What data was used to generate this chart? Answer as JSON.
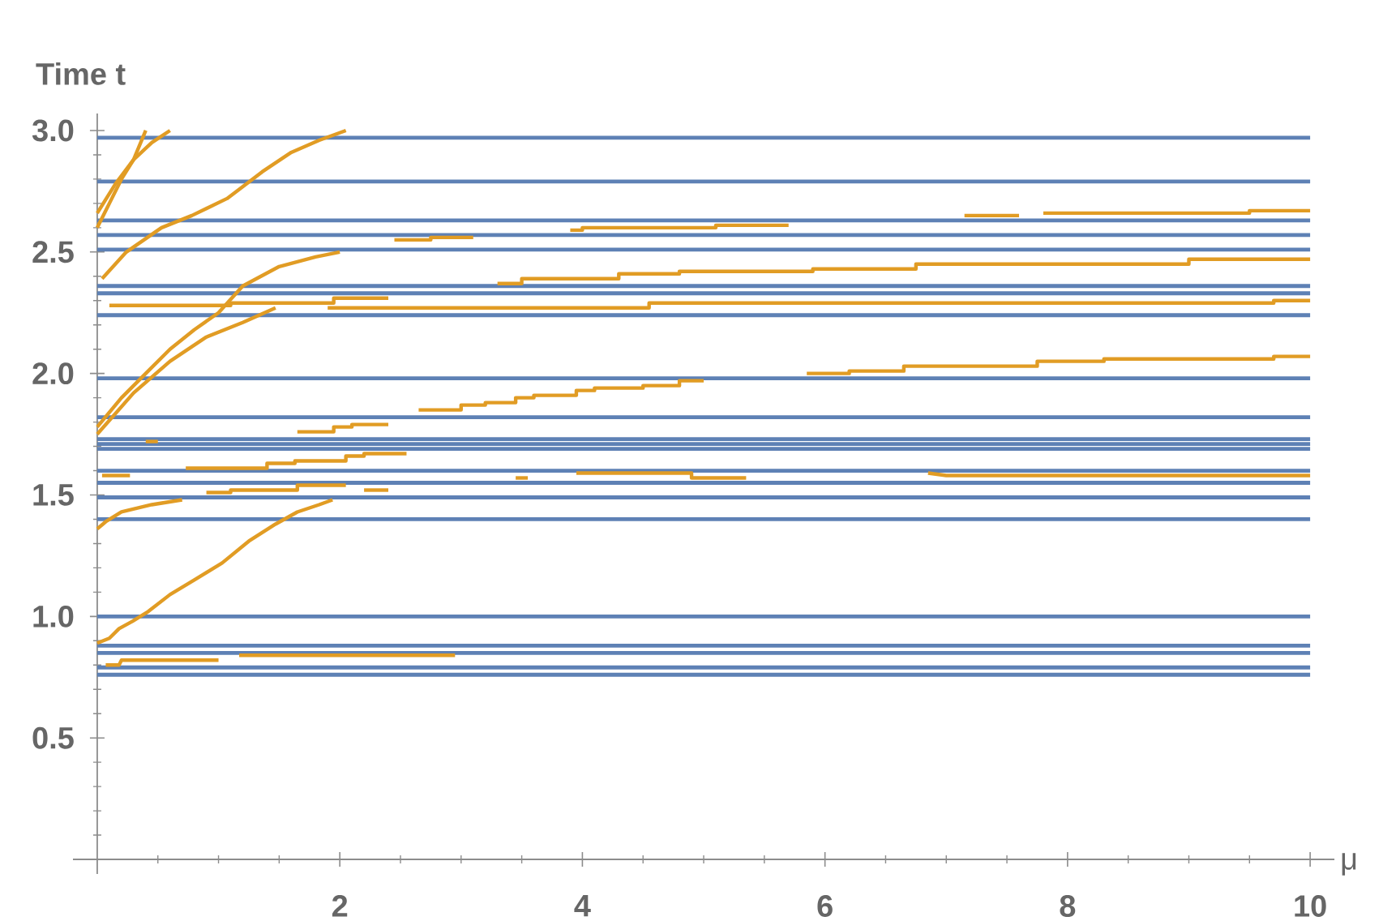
{
  "chart_data": {
    "type": "line",
    "xlabel": "μ",
    "ylabel": "Time t",
    "xlim": [
      -0.2,
      10.2
    ],
    "ylim": [
      -0.06,
      3.07
    ],
    "xticks": [
      {
        "value": 0.5,
        "label": null
      },
      {
        "value": 1,
        "label": null
      },
      {
        "value": 1.5,
        "label": null
      },
      2,
      {
        "value": 2.5,
        "label": null
      },
      {
        "value": 3,
        "label": null
      },
      {
        "value": 3.5,
        "label": null
      },
      4,
      {
        "value": 4.5,
        "label": null
      },
      {
        "value": 5,
        "label": null
      },
      {
        "value": 5.5,
        "label": null
      },
      6,
      {
        "value": 6.5,
        "label": null
      },
      {
        "value": 7,
        "label": null
      },
      {
        "value": 7.5,
        "label": null
      },
      8,
      {
        "value": 8.5,
        "label": null
      },
      {
        "value": 9,
        "label": null
      },
      {
        "value": 9.5,
        "label": null
      },
      10
    ],
    "yticks": [
      {
        "value": 0.1,
        "label": null
      },
      {
        "value": 0.2,
        "label": null
      },
      {
        "value": 0.3,
        "label": null
      },
      {
        "value": 0.4,
        "label": null
      },
      0.5,
      {
        "value": 0.6,
        "label": null
      },
      {
        "value": 0.7,
        "label": null
      },
      {
        "value": 0.8,
        "label": null
      },
      {
        "value": 0.9,
        "label": null
      },
      {
        "value": 1,
        "label": "1.0"
      },
      {
        "value": 1.1,
        "label": null
      },
      {
        "value": 1.2,
        "label": null
      },
      {
        "value": 1.3,
        "label": null
      },
      {
        "value": 1.4,
        "label": null
      },
      1.5,
      {
        "value": 1.6,
        "label": null
      },
      {
        "value": 1.7,
        "label": null
      },
      {
        "value": 1.8,
        "label": null
      },
      {
        "value": 1.9,
        "label": null
      },
      {
        "value": 2,
        "label": "2.0"
      },
      {
        "value": 2.1,
        "label": null
      },
      {
        "value": 2.2,
        "label": null
      },
      {
        "value": 2.3,
        "label": null
      },
      {
        "value": 2.4,
        "label": null
      },
      2.5,
      {
        "value": 2.6,
        "label": null
      },
      {
        "value": 2.7,
        "label": null
      },
      {
        "value": 2.8,
        "label": null
      },
      {
        "value": 2.9,
        "label": null
      },
      {
        "value": 3,
        "label": "3.0"
      }
    ],
    "series": [
      {
        "color": "#5e81b5",
        "x": [
          0,
          10
        ],
        "values": [
          2.97,
          2.97
        ]
      },
      {
        "color": "#5e81b5",
        "x": [
          0,
          10
        ],
        "values": [
          2.79,
          2.79
        ]
      },
      {
        "color": "#5e81b5",
        "x": [
          0,
          10
        ],
        "values": [
          2.63,
          2.63
        ]
      },
      {
        "color": "#5e81b5",
        "x": [
          0,
          10
        ],
        "values": [
          2.57,
          2.57
        ]
      },
      {
        "color": "#5e81b5",
        "x": [
          0,
          10
        ],
        "values": [
          2.51,
          2.51
        ]
      },
      {
        "color": "#5e81b5",
        "x": [
          0,
          10
        ],
        "values": [
          2.36,
          2.36
        ]
      },
      {
        "color": "#5e81b5",
        "x": [
          0,
          10
        ],
        "values": [
          2.33,
          2.33
        ]
      },
      {
        "color": "#5e81b5",
        "x": [
          0,
          10
        ],
        "values": [
          2.24,
          2.24
        ]
      },
      {
        "color": "#5e81b5",
        "x": [
          0,
          10
        ],
        "values": [
          1.98,
          1.98
        ]
      },
      {
        "color": "#5e81b5",
        "x": [
          0,
          10
        ],
        "values": [
          1.82,
          1.82
        ]
      },
      {
        "color": "#5e81b5",
        "x": [
          0,
          10
        ],
        "values": [
          1.73,
          1.73
        ]
      },
      {
        "color": "#5e81b5",
        "x": [
          0,
          10
        ],
        "values": [
          1.71,
          1.71
        ]
      },
      {
        "color": "#5e81b5",
        "x": [
          0,
          10
        ],
        "values": [
          1.69,
          1.69
        ]
      },
      {
        "color": "#5e81b5",
        "x": [
          0,
          10
        ],
        "values": [
          1.6,
          1.6
        ]
      },
      {
        "color": "#5e81b5",
        "x": [
          0,
          10
        ],
        "values": [
          1.55,
          1.55
        ]
      },
      {
        "color": "#5e81b5",
        "x": [
          0,
          10
        ],
        "values": [
          1.49,
          1.49
        ]
      },
      {
        "color": "#5e81b5",
        "x": [
          0,
          10
        ],
        "values": [
          1.4,
          1.4
        ]
      },
      {
        "color": "#5e81b5",
        "x": [
          0,
          10
        ],
        "values": [
          1.0,
          1.0
        ]
      },
      {
        "color": "#5e81b5",
        "x": [
          0,
          10
        ],
        "values": [
          0.88,
          0.88
        ]
      },
      {
        "color": "#5e81b5",
        "x": [
          0,
          10
        ],
        "values": [
          0.85,
          0.85
        ]
      },
      {
        "color": "#5e81b5",
        "x": [
          0,
          10
        ],
        "values": [
          0.79,
          0.79
        ]
      },
      {
        "color": "#5e81b5",
        "x": [
          0,
          10
        ],
        "values": [
          0.76,
          0.76
        ]
      },
      {
        "color": "#e19c24",
        "x": [
          0,
          0.1,
          0.2,
          0.3,
          0.4
        ],
        "values": [
          2.6,
          2.7,
          2.8,
          2.88,
          3.0
        ]
      },
      {
        "color": "#e19c24",
        "x": [
          0,
          0.15,
          0.3,
          0.45,
          0.6
        ],
        "values": [
          2.66,
          2.78,
          2.88,
          2.95,
          3.0
        ]
      },
      {
        "color": "#e19c24",
        "x": [
          0.04,
          0.24,
          0.53,
          0.78,
          1.07,
          1.36,
          1.6,
          1.83,
          2.05
        ],
        "values": [
          2.39,
          2.5,
          2.6,
          2.65,
          2.72,
          2.83,
          2.91,
          2.96,
          3.0
        ]
      },
      {
        "color": "#e19c24",
        "x": [
          0,
          0.2,
          0.4,
          0.6,
          0.8,
          1.0,
          1.2,
          1.5,
          1.8,
          2.0
        ],
        "values": [
          1.78,
          1.9,
          2.0,
          2.1,
          2.18,
          2.25,
          2.36,
          2.44,
          2.48,
          2.5
        ]
      },
      {
        "color": "#e19c24",
        "x": [
          0,
          0.3,
          0.6,
          0.9,
          1.2,
          1.47
        ],
        "values": [
          1.75,
          1.92,
          2.05,
          2.15,
          2.21,
          2.27
        ]
      },
      {
        "color": "#e19c24",
        "x": [
          0.1,
          1.1,
          1.1,
          1.95,
          1.95,
          2.4
        ],
        "values": [
          2.28,
          2.28,
          2.29,
          2.29,
          2.31,
          2.31
        ]
      },
      {
        "color": "#e19c24",
        "x": [
          1.9,
          4.55,
          4.55,
          9.7,
          9.7,
          10
        ],
        "values": [
          2.27,
          2.27,
          2.29,
          2.29,
          2.3,
          2.3
        ]
      },
      {
        "color": "#e19c24",
        "x": [
          3.3,
          3.5,
          3.5,
          4.3,
          4.3,
          4.8,
          4.8,
          5.9,
          5.9,
          6.75,
          6.75,
          9.0,
          9.0,
          10
        ],
        "values": [
          2.37,
          2.37,
          2.39,
          2.39,
          2.41,
          2.41,
          2.42,
          2.42,
          2.43,
          2.43,
          2.45,
          2.45,
          2.47,
          2.47
        ]
      },
      {
        "color": "#e19c24",
        "x": [
          2.45,
          2.75,
          2.75,
          3.1
        ],
        "values": [
          2.55,
          2.55,
          2.56,
          2.56
        ]
      },
      {
        "color": "#e19c24",
        "x": [
          3.9,
          4.0,
          4.0,
          5.1,
          5.1,
          5.7
        ],
        "values": [
          2.59,
          2.59,
          2.6,
          2.6,
          2.61,
          2.61
        ]
      },
      {
        "color": "#e19c24",
        "x": [
          7.15,
          7.6
        ],
        "values": [
          2.65,
          2.65
        ]
      },
      {
        "color": "#e19c24",
        "x": [
          7.8,
          9.5,
          9.5,
          10
        ],
        "values": [
          2.66,
          2.66,
          2.67,
          2.67
        ]
      },
      {
        "color": "#e19c24",
        "x": [
          1.65,
          1.95,
          1.95,
          2.1,
          2.1,
          2.4
        ],
        "values": [
          1.76,
          1.76,
          1.78,
          1.78,
          1.79,
          1.79
        ]
      },
      {
        "color": "#e19c24",
        "x": [
          2.65,
          3.0,
          3.0,
          3.2,
          3.2,
          3.45,
          3.45,
          3.6,
          3.6,
          3.95,
          3.95,
          4.1,
          4.1,
          4.5,
          4.5,
          4.8,
          4.8,
          5.0
        ],
        "values": [
          1.85,
          1.85,
          1.87,
          1.87,
          1.88,
          1.88,
          1.9,
          1.9,
          1.91,
          1.91,
          1.93,
          1.93,
          1.94,
          1.94,
          1.95,
          1.95,
          1.97,
          1.97
        ]
      },
      {
        "color": "#e19c24",
        "x": [
          5.85,
          6.2,
          6.2,
          6.65,
          6.65,
          7.75,
          7.75,
          8.3,
          8.3,
          9.7,
          9.7,
          10
        ],
        "values": [
          2.0,
          2.0,
          2.01,
          2.01,
          2.03,
          2.03,
          2.05,
          2.05,
          2.06,
          2.06,
          2.07,
          2.07
        ]
      },
      {
        "color": "#e19c24",
        "x": [
          0.73,
          1.4,
          1.4,
          1.63,
          1.63,
          2.05,
          2.05,
          2.2,
          2.2,
          2.55
        ],
        "values": [
          1.61,
          1.61,
          1.63,
          1.63,
          1.64,
          1.64,
          1.66,
          1.66,
          1.67,
          1.67
        ]
      },
      {
        "color": "#e19c24",
        "x": [
          0.4,
          0.5
        ],
        "values": [
          1.72,
          1.72
        ]
      },
      {
        "color": "#e19c24",
        "x": [
          0.04,
          0.27
        ],
        "values": [
          1.58,
          1.58
        ]
      },
      {
        "color": "#e19c24",
        "x": [
          0.9,
          1.1,
          1.1,
          1.65,
          1.65,
          2.05
        ],
        "values": [
          1.51,
          1.51,
          1.52,
          1.52,
          1.54,
          1.54
        ]
      },
      {
        "color": "#e19c24",
        "x": [
          2.2,
          2.4
        ],
        "values": [
          1.52,
          1.52
        ]
      },
      {
        "color": "#e19c24",
        "x": [
          3.45,
          3.55
        ],
        "values": [
          1.57,
          1.57
        ]
      },
      {
        "color": "#e19c24",
        "x": [
          3.95,
          4.9,
          4.9,
          5.35
        ],
        "values": [
          1.59,
          1.59,
          1.57,
          1.57
        ]
      },
      {
        "color": "#e19c24",
        "x": [
          6.85,
          7.0,
          10
        ],
        "values": [
          1.59,
          1.58,
          1.58
        ]
      },
      {
        "color": "#e19c24",
        "x": [
          0,
          0.07,
          0.2,
          0.45,
          0.7
        ],
        "values": [
          1.36,
          1.39,
          1.43,
          1.46,
          1.48
        ]
      },
      {
        "color": "#e19c24",
        "x": [
          0,
          0.1,
          0.18,
          0.29,
          0.42,
          0.6,
          0.8,
          1.03,
          1.25,
          1.47,
          1.65,
          1.83,
          1.94
        ],
        "values": [
          0.89,
          0.91,
          0.95,
          0.98,
          1.02,
          1.09,
          1.15,
          1.22,
          1.31,
          1.38,
          1.43,
          1.46,
          1.48
        ]
      },
      {
        "color": "#e19c24",
        "x": [
          0.07,
          0.18,
          0.2,
          1.0
        ],
        "values": [
          0.8,
          0.8,
          0.82,
          0.82
        ]
      },
      {
        "color": "#e19c24",
        "x": [
          1.17,
          2.95
        ],
        "values": [
          0.84,
          0.84
        ]
      }
    ]
  }
}
